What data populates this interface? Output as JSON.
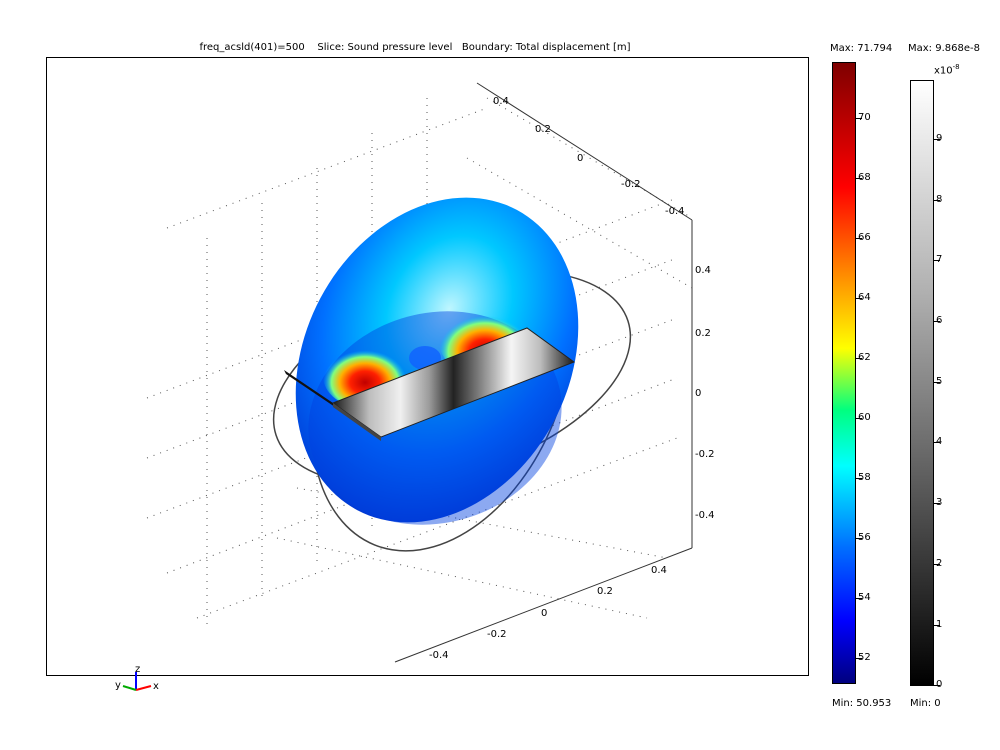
{
  "title": {
    "freq": "freq_acsld(401)=500",
    "slice": "Slice: Sound pressure level",
    "boundary": "Boundary: Total displacement [m]"
  },
  "axis_labels": {
    "top_axis": [
      "0.4",
      "0.2",
      "0",
      "-0.2",
      "-0.4"
    ],
    "right_axis": [
      "0.4",
      "0.2",
      "0",
      "-0.2",
      "-0.4"
    ],
    "bottom_axis": [
      "0.4",
      "0.2",
      "0",
      "-0.2",
      "-0.4"
    ]
  },
  "axes_indicator": {
    "x": "x",
    "y": "y",
    "z": "z"
  },
  "colorbar_spl": {
    "max_label": "Max: 71.794",
    "min_label": "Min: 50.953",
    "ticks": [
      "70",
      "68",
      "66",
      "64",
      "62",
      "60",
      "58",
      "56",
      "54",
      "52"
    ],
    "max": 71.794,
    "min": 50.953
  },
  "colorbar_disp": {
    "max_label": "Max: 9.868e-8",
    "min_label": "Min: 0",
    "exponent_label": "x10",
    "exponent": "-8",
    "ticks": [
      "9",
      "8",
      "7",
      "6",
      "5",
      "4",
      "3",
      "2",
      "1",
      "0"
    ],
    "max": 9.868,
    "min": 0
  },
  "colors": {
    "jet_top": "#7f0000",
    "jet_red": "#ff0000",
    "jet_yellow": "#ffff00",
    "jet_cyan": "#00ffff",
    "jet_blue": "#0000ff",
    "jet_bottom": "#00007f"
  }
}
